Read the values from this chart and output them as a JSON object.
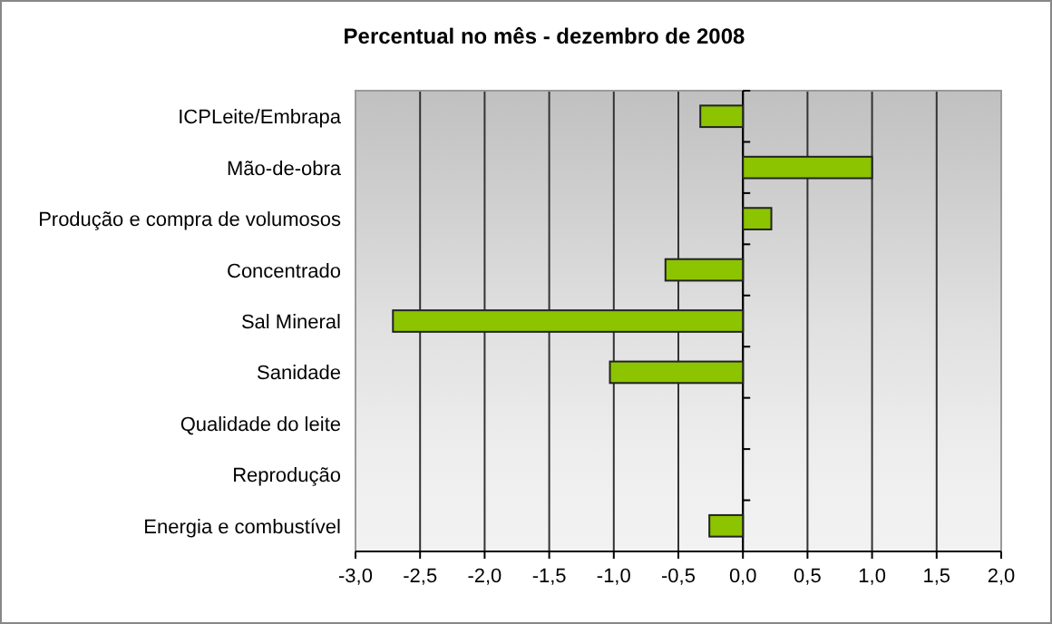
{
  "chart_data": {
    "type": "bar",
    "orientation": "horizontal",
    "title": "Percentual no mês - dezembro de 2008",
    "categories": [
      "ICPLeite/Embrapa",
      "Mão-de-obra",
      "Produção e compra de volumosos",
      "Concentrado",
      "Sal Mineral",
      "Sanidade",
      "Qualidade do leite",
      "Reprodução",
      "Energia e combustível"
    ],
    "values": [
      -0.33,
      1.0,
      0.22,
      -0.6,
      -2.71,
      -1.03,
      0,
      0,
      -0.26
    ],
    "color": "#8cc400",
    "xlim": [
      -3,
      2
    ],
    "xticks": [
      {
        "value": -3,
        "label": "-3,0"
      },
      {
        "value": -2.5,
        "label": "-2,5"
      },
      {
        "value": -2,
        "label": "-2,0"
      },
      {
        "value": -1.5,
        "label": "-1,5"
      },
      {
        "value": -1,
        "label": "-1,0"
      },
      {
        "value": -0.5,
        "label": "-0,5"
      },
      {
        "value": 0,
        "label": "0,0"
      },
      {
        "value": 0.5,
        "label": "0,5"
      },
      {
        "value": 1,
        "label": "1,0"
      },
      {
        "value": 1.5,
        "label": "1,5"
      },
      {
        "value": 2,
        "label": "2,0"
      }
    ],
    "grid": "x"
  }
}
